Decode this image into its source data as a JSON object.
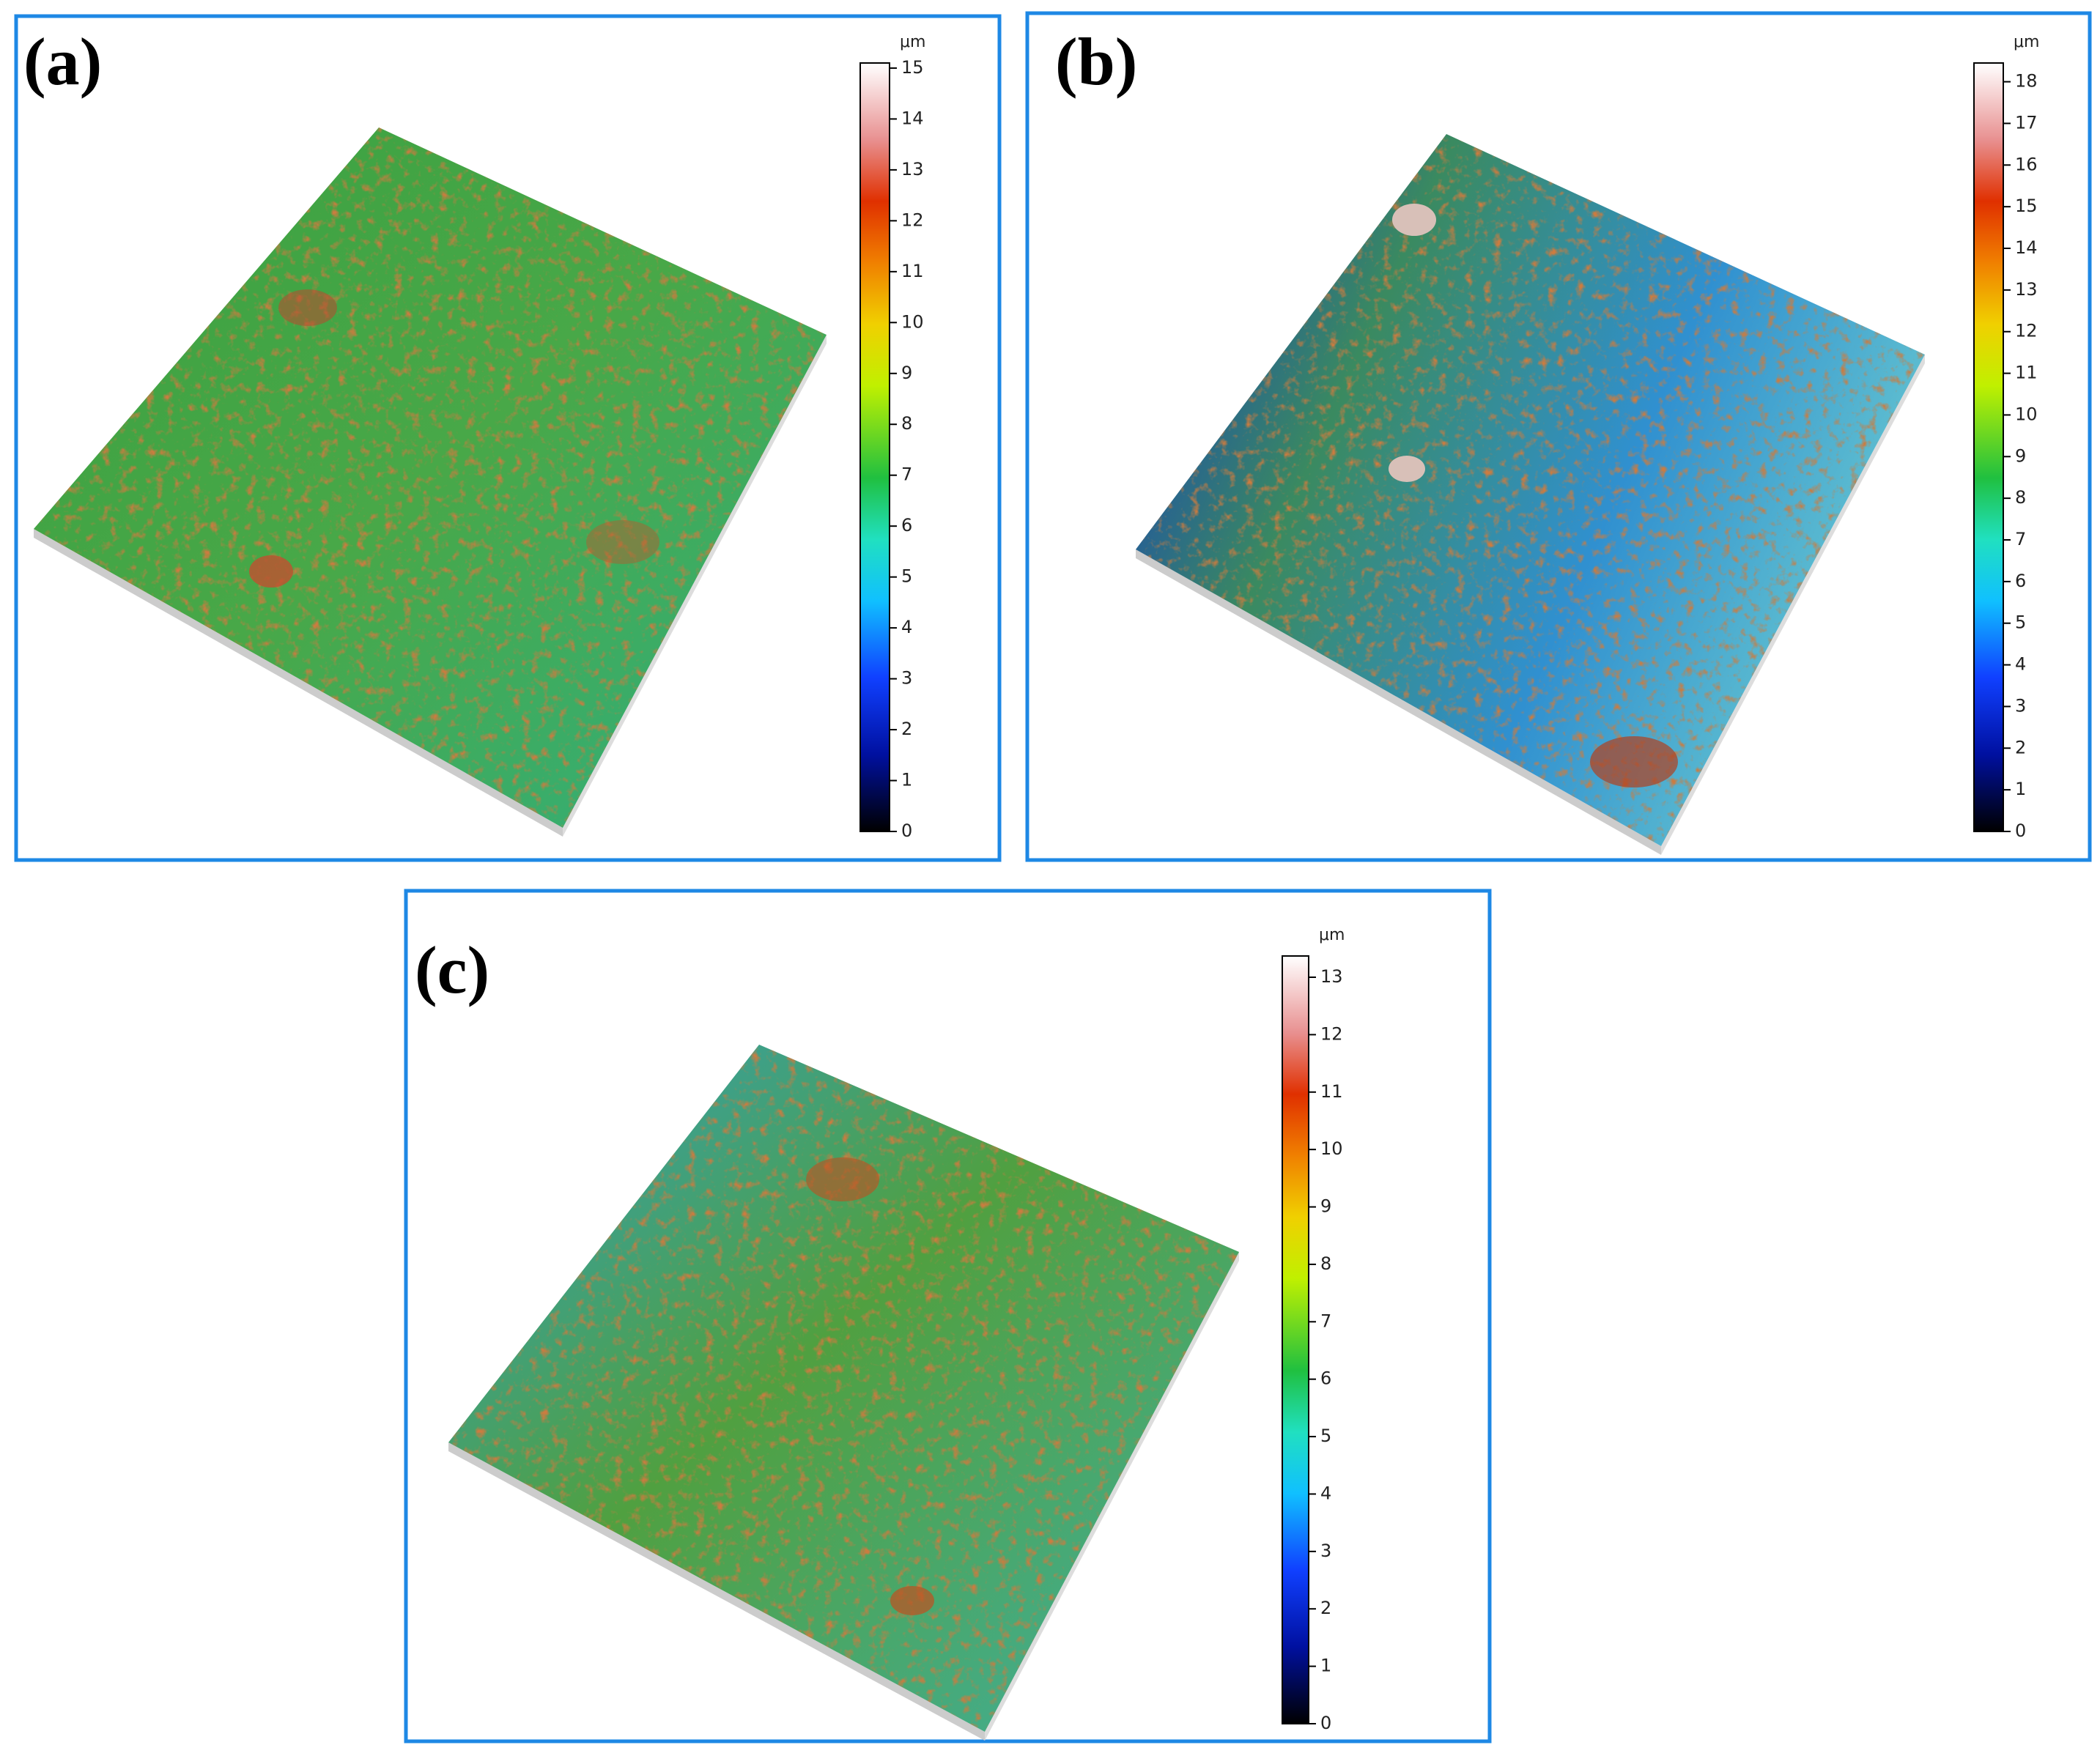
{
  "panels": [
    {
      "label": "(a)",
      "unit": "μm",
      "range": [
        0,
        15.1
      ],
      "ticks": [
        0,
        1,
        2,
        3,
        4,
        5,
        6,
        7,
        8,
        9,
        10,
        11,
        12,
        13,
        14,
        15
      ]
    },
    {
      "label": "(b)",
      "unit": "μm",
      "range": [
        0,
        18.45
      ],
      "ticks": [
        0,
        1,
        2,
        3,
        4,
        5,
        6,
        7,
        8,
        9,
        10,
        11,
        12,
        13,
        14,
        15,
        16,
        17,
        18
      ]
    },
    {
      "label": "(c)",
      "unit": "μm",
      "range": [
        0,
        13.37
      ],
      "ticks": [
        0,
        1,
        2,
        3,
        4,
        5,
        6,
        7,
        8,
        9,
        10,
        11,
        12,
        13
      ]
    }
  ]
}
